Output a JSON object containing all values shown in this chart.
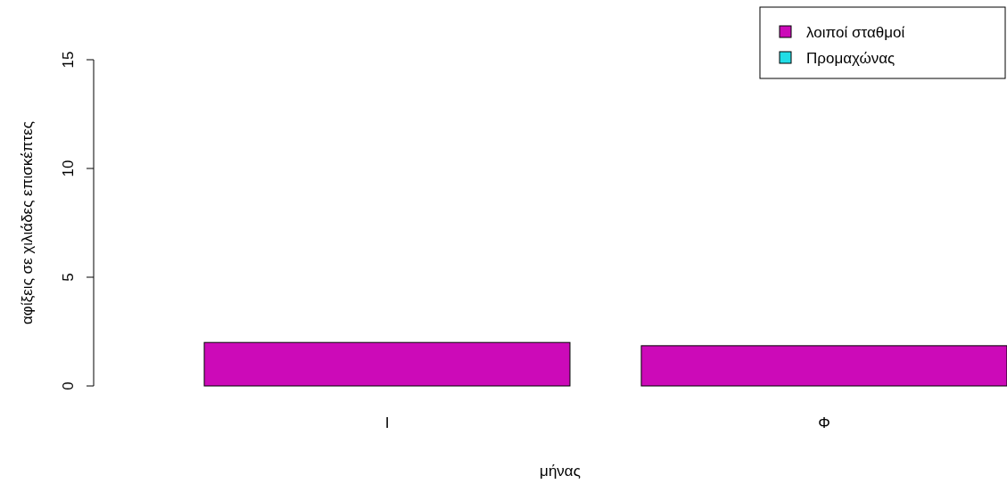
{
  "chart_data": {
    "type": "bar",
    "stacked": true,
    "categories": [
      "Ι",
      "Φ"
    ],
    "xlabel": "μήνας",
    "ylabel": "αφίξεις σε χιλιάδες επισκέπτες",
    "ylim": [
      0,
      15
    ],
    "yticks": [
      0,
      5,
      10,
      15
    ],
    "legend": "top right",
    "grid": false,
    "series": [
      {
        "name": "λοιποί σταθμοί",
        "color": "#cc0ab8",
        "values": [
          2.0,
          1.85
        ]
      },
      {
        "name": "Προμαχώνας",
        "color": "#22dde6",
        "values": [
          0,
          0
        ]
      }
    ]
  }
}
